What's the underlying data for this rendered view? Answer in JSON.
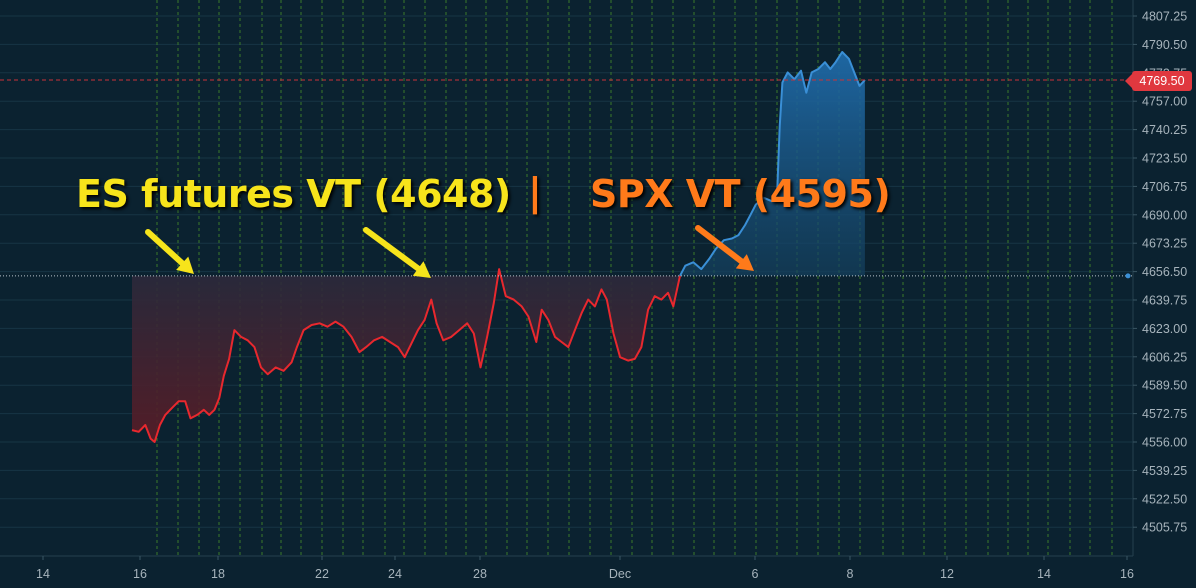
{
  "chart_data": {
    "type": "line",
    "x_tick_labels": [
      "14",
      "16",
      "18",
      "22",
      "24",
      "28",
      "Dec",
      "6",
      "8",
      "12",
      "14",
      "16"
    ],
    "y_tick_labels": [
      "4807.25",
      "4790.50",
      "4773.75",
      "4757.00",
      "4740.25",
      "4723.50",
      "4706.75",
      "4690.00",
      "4673.25",
      "4656.50",
      "4639.75",
      "4623.00",
      "4606.25",
      "4589.50",
      "4572.75",
      "4556.00",
      "4539.25",
      "4522.50",
      "4505.75"
    ],
    "ylim": [
      4495,
      4815
    ],
    "last_price_label": "4769.50",
    "last_price": 4769.5,
    "reference_level": 4654,
    "series": [
      {
        "color_below": "#e8282e",
        "color_above": "#3a8fd6",
        "points": [
          [
            -0.3,
            4563
          ],
          [
            -0.05,
            4562
          ],
          [
            0.2,
            4566
          ],
          [
            0.4,
            4558
          ],
          [
            0.55,
            4556
          ],
          [
            0.75,
            4566
          ],
          [
            0.95,
            4572
          ],
          [
            1.2,
            4576
          ],
          [
            1.45,
            4580
          ],
          [
            1.7,
            4580
          ],
          [
            1.9,
            4570
          ],
          [
            2.15,
            4572
          ],
          [
            2.4,
            4575
          ],
          [
            2.6,
            4572
          ],
          [
            2.8,
            4575
          ],
          [
            2.98,
            4582
          ],
          [
            3.15,
            4595
          ],
          [
            3.35,
            4605
          ],
          [
            3.55,
            4622
          ],
          [
            3.8,
            4618
          ],
          [
            4.05,
            4616
          ],
          [
            4.3,
            4612
          ],
          [
            4.55,
            4600
          ],
          [
            4.8,
            4596
          ],
          [
            5.1,
            4600
          ],
          [
            5.4,
            4598
          ],
          [
            5.7,
            4603
          ],
          [
            5.9,
            4612
          ],
          [
            6.15,
            4622
          ],
          [
            6.45,
            4625
          ],
          [
            6.75,
            4626
          ],
          [
            7.05,
            4624
          ],
          [
            7.35,
            4627
          ],
          [
            7.65,
            4624
          ],
          [
            7.95,
            4618
          ],
          [
            8.25,
            4609
          ],
          [
            8.5,
            4612
          ],
          [
            8.8,
            4616
          ],
          [
            9.1,
            4618
          ],
          [
            9.4,
            4615
          ],
          [
            9.7,
            4612
          ],
          [
            9.95,
            4606
          ],
          [
            10.2,
            4614
          ],
          [
            10.45,
            4622
          ],
          [
            10.7,
            4628
          ],
          [
            10.95,
            4640
          ],
          [
            11.15,
            4626
          ],
          [
            11.4,
            4616
          ],
          [
            11.7,
            4618
          ],
          [
            12.0,
            4622
          ],
          [
            12.3,
            4626
          ],
          [
            12.55,
            4620
          ],
          [
            12.8,
            4600
          ],
          [
            13.05,
            4618
          ],
          [
            13.3,
            4638
          ],
          [
            13.5,
            4658
          ],
          [
            13.75,
            4642
          ],
          [
            14.05,
            4640
          ],
          [
            14.35,
            4636
          ],
          [
            14.6,
            4630
          ],
          [
            14.9,
            4615
          ],
          [
            15.1,
            4634
          ],
          [
            15.35,
            4628
          ],
          [
            15.6,
            4618
          ],
          [
            15.85,
            4615
          ],
          [
            16.1,
            4612
          ],
          [
            16.35,
            4622
          ],
          [
            16.6,
            4632
          ],
          [
            16.85,
            4640
          ],
          [
            17.1,
            4636
          ],
          [
            17.35,
            4646
          ],
          [
            17.55,
            4640
          ],
          [
            17.8,
            4620
          ],
          [
            18.05,
            4606
          ],
          [
            18.35,
            4604
          ],
          [
            18.6,
            4605
          ],
          [
            18.85,
            4612
          ],
          [
            19.1,
            4634
          ],
          [
            19.35,
            4642
          ],
          [
            19.6,
            4640
          ],
          [
            19.85,
            4644
          ],
          [
            20.05,
            4636
          ],
          [
            20.3,
            4654
          ],
          [
            20.5,
            4660
          ],
          [
            20.8,
            4662
          ],
          [
            21.1,
            4658
          ],
          [
            21.4,
            4664
          ],
          [
            21.65,
            4670
          ],
          [
            21.95,
            4675
          ],
          [
            22.25,
            4676
          ],
          [
            22.5,
            4678
          ],
          [
            22.75,
            4684
          ],
          [
            22.95,
            4690
          ],
          [
            23.15,
            4696
          ],
          [
            23.45,
            4700
          ],
          [
            23.75,
            4698
          ],
          [
            23.95,
            4702
          ],
          [
            24.05,
            4742
          ],
          [
            24.15,
            4768
          ],
          [
            24.35,
            4774
          ],
          [
            24.6,
            4770
          ],
          [
            24.85,
            4775
          ],
          [
            25.05,
            4762
          ],
          [
            25.25,
            4774
          ],
          [
            25.5,
            4776
          ],
          [
            25.75,
            4780
          ],
          [
            25.95,
            4776
          ],
          [
            26.15,
            4780
          ],
          [
            26.4,
            4786
          ],
          [
            26.65,
            4782
          ],
          [
            26.85,
            4774
          ],
          [
            27.05,
            4766
          ],
          [
            27.25,
            4769.5
          ]
        ]
      }
    ]
  },
  "annotations": {
    "es_text": "ES futures VT (4648)",
    "separator": "|",
    "spx_text": "SPX VT (4595)",
    "es_color": "#f7e41b",
    "spx_color": "#ff7a1a"
  }
}
